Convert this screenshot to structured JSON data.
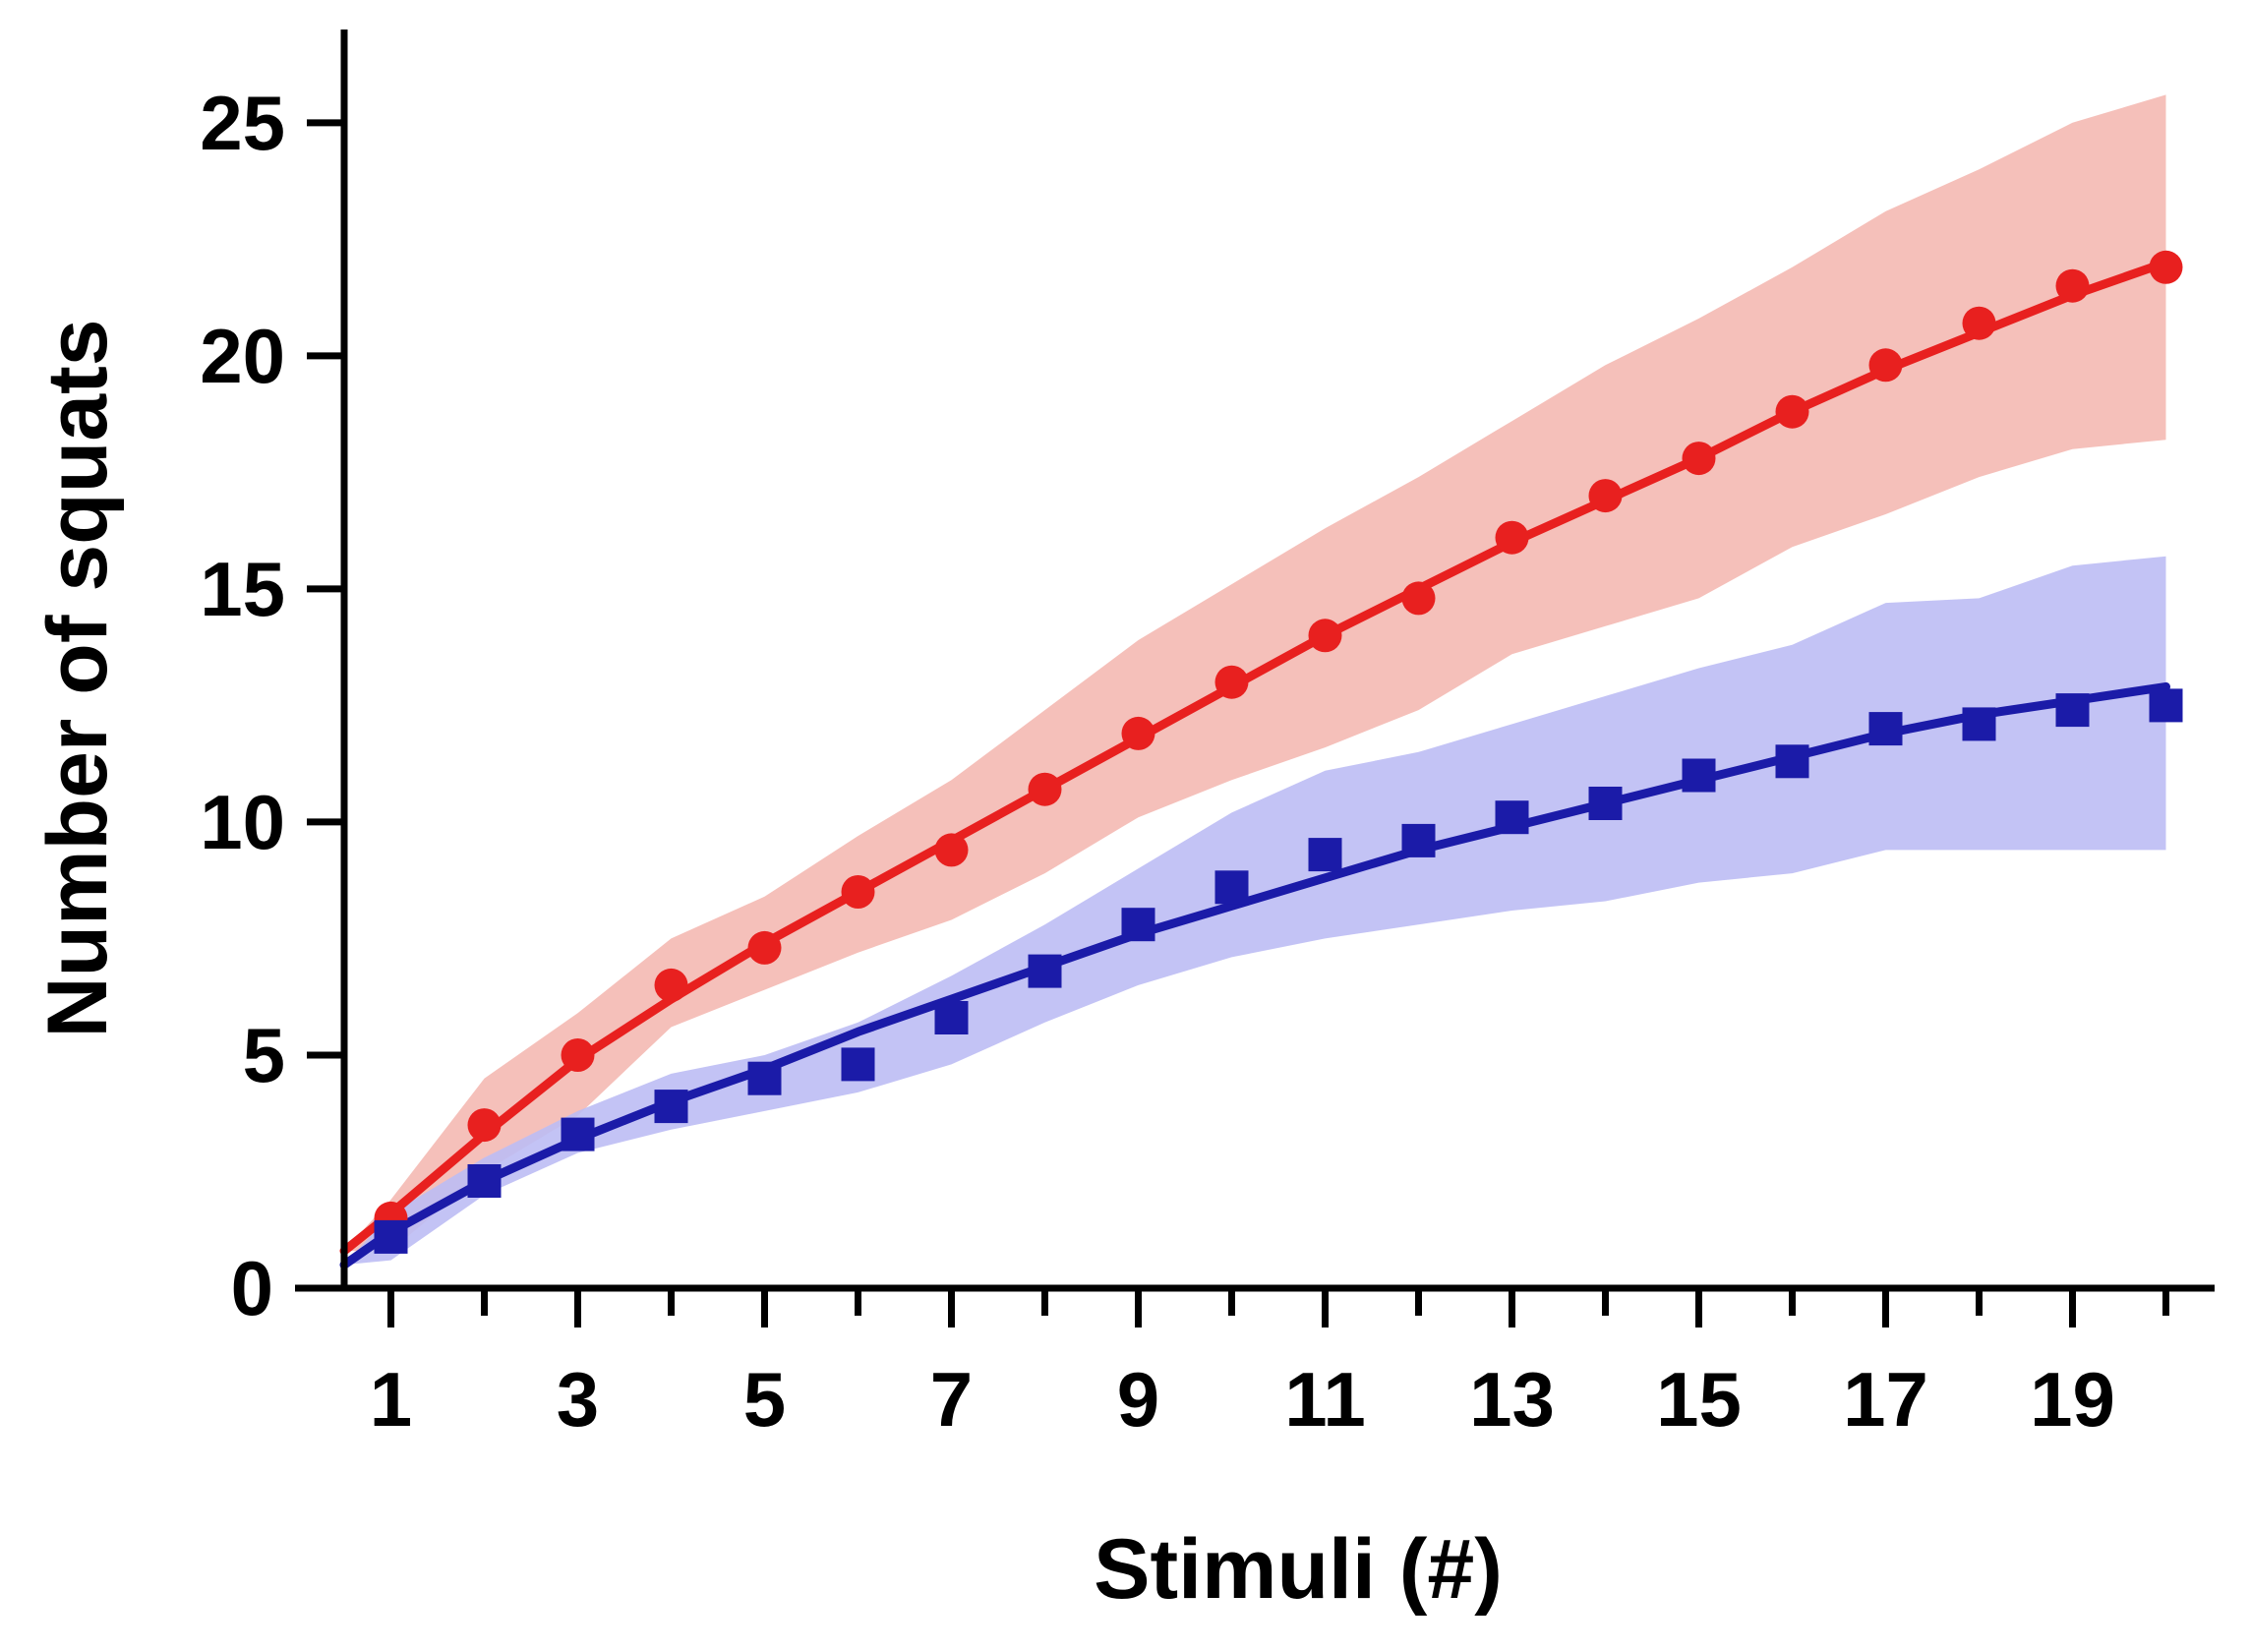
{
  "chart_data": {
    "type": "line",
    "title": "",
    "xlabel": "Stimuli (#)",
    "ylabel": "Number of squats",
    "xlim": [
      0.5,
      20.5
    ],
    "ylim": [
      0,
      27
    ],
    "xticks": [
      1,
      3,
      5,
      7,
      9,
      11,
      13,
      15,
      17,
      19
    ],
    "xminorticks": [
      2,
      4,
      6,
      8,
      10,
      12,
      14,
      16,
      18,
      20
    ],
    "yticks": [
      0,
      5,
      10,
      15,
      20,
      25
    ],
    "x": [
      1,
      2,
      3,
      4,
      5,
      6,
      7,
      8,
      9,
      10,
      11,
      12,
      13,
      14,
      15,
      16,
      17,
      18,
      19,
      20
    ],
    "series": [
      {
        "name": "red",
        "marker": "circle",
        "color": "#e8201f",
        "band_color": "#f4b9b3",
        "values": [
          1.5,
          3.5,
          5.0,
          6.5,
          7.3,
          8.5,
          9.4,
          10.7,
          11.9,
          13.0,
          14.0,
          14.8,
          16.1,
          17.0,
          17.8,
          18.8,
          19.8,
          20.7,
          21.5,
          21.9
        ],
        "band_lower": [
          0.8,
          2.5,
          3.7,
          5.6,
          6.4,
          7.2,
          7.9,
          8.9,
          10.1,
          10.9,
          11.6,
          12.4,
          13.6,
          14.2,
          14.8,
          15.9,
          16.6,
          17.4,
          18.0,
          18.2
        ],
        "band_upper": [
          1.9,
          4.5,
          5.9,
          7.5,
          8.4,
          9.7,
          10.9,
          12.4,
          13.9,
          15.1,
          16.3,
          17.4,
          18.6,
          19.8,
          20.8,
          21.9,
          23.1,
          24.0,
          25.0,
          25.6
        ],
        "fit_x": [
          0.5,
          1,
          2,
          3,
          4,
          5,
          6,
          7,
          8,
          9,
          10,
          11,
          12,
          13,
          14,
          15,
          16,
          17,
          18,
          19,
          20
        ],
        "fit_y": [
          0.8,
          1.6,
          3.3,
          4.9,
          6.2,
          7.4,
          8.5,
          9.6,
          10.7,
          11.8,
          12.9,
          14.0,
          15.0,
          16.0,
          16.9,
          17.8,
          18.8,
          19.7,
          20.5,
          21.3,
          22.0
        ]
      },
      {
        "name": "blue",
        "marker": "square",
        "color": "#1b1ba8",
        "band_color": "#bcbcf4",
        "values": [
          1.1,
          2.3,
          3.3,
          3.9,
          4.5,
          4.8,
          5.8,
          6.8,
          7.8,
          8.6,
          9.3,
          9.6,
          10.1,
          10.4,
          11.0,
          11.3,
          12.0,
          12.1,
          12.4,
          12.5
        ],
        "band_lower": [
          0.6,
          2.0,
          2.9,
          3.4,
          3.8,
          4.2,
          4.8,
          5.7,
          6.5,
          7.1,
          7.5,
          7.8,
          8.1,
          8.3,
          8.7,
          8.9,
          9.4,
          9.4,
          9.4,
          9.4
        ],
        "band_upper": [
          1.6,
          2.8,
          3.8,
          4.6,
          5.0,
          5.7,
          6.7,
          7.8,
          9.0,
          10.2,
          11.1,
          11.5,
          12.1,
          12.7,
          13.3,
          13.8,
          14.7,
          14.8,
          15.5,
          15.7
        ],
        "fit_x": [
          0.5,
          1,
          2,
          3,
          4,
          5,
          6,
          7,
          8,
          9,
          10,
          11,
          12,
          13,
          14,
          15,
          16,
          17,
          18,
          19,
          20
        ],
        "fit_y": [
          0.5,
          1.2,
          2.3,
          3.2,
          4.0,
          4.7,
          5.5,
          6.2,
          6.9,
          7.6,
          8.2,
          8.8,
          9.4,
          9.9,
          10.4,
          10.9,
          11.4,
          11.9,
          12.3,
          12.6,
          12.9
        ]
      }
    ]
  }
}
